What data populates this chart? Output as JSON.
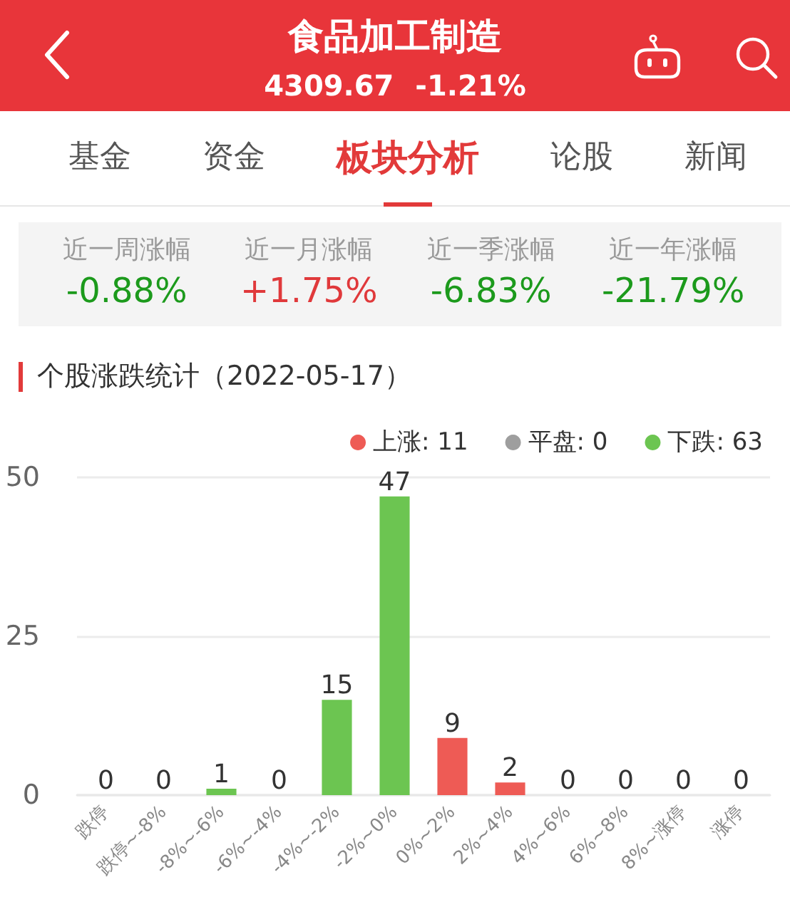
{
  "chart_data": [
    {
      "type": "other",
      "title": "食品加工制造",
      "subtitle": "4309.67 -1.21%",
      "annotations": [
        "基金",
        "资金",
        "板块分析",
        "论股",
        "新闻"
      ]
    },
    {
      "type": "other",
      "categories": [
        "近一周涨幅",
        "近一月涨幅",
        "近一季涨幅",
        "近一年涨幅"
      ],
      "values": [
        -0.88,
        1.75,
        -6.83,
        -21.79
      ],
      "value_labels": [
        "-0.88%",
        "+1.75%",
        "-6.83%",
        "-21.79%"
      ]
    },
    {
      "type": "bar",
      "title": "个股涨跌统计（2022-05-17）",
      "categories": [
        "跌停",
        "跌停~-8%",
        "-8%~-6%",
        "-6%~-4%",
        "-4%~-2%",
        "-2%~0%",
        "0%~2%",
        "2%~4%",
        "4%~6%",
        "6%~8%",
        "8%~涨停",
        "涨停"
      ],
      "series": [
        {
          "name": "上涨: 11",
          "color": "#ee5b55",
          "values": [
            null,
            null,
            null,
            null,
            null,
            null,
            9,
            2,
            0,
            0,
            0,
            0
          ]
        },
        {
          "name": "平盘: 0",
          "color": "#9e9e9e",
          "values": [
            null,
            null,
            null,
            null,
            null,
            null,
            null,
            null,
            null,
            null,
            null,
            null
          ]
        },
        {
          "name": "下跌: 63",
          "color": "#6cc551",
          "values": [
            0,
            0,
            1,
            0,
            15,
            47,
            null,
            null,
            null,
            null,
            null,
            null
          ]
        }
      ],
      "ylim": [
        0,
        50
      ],
      "yticks": [
        0,
        25,
        50
      ],
      "grid": "y",
      "legend": "top right",
      "data_labels": true
    }
  ]
}
